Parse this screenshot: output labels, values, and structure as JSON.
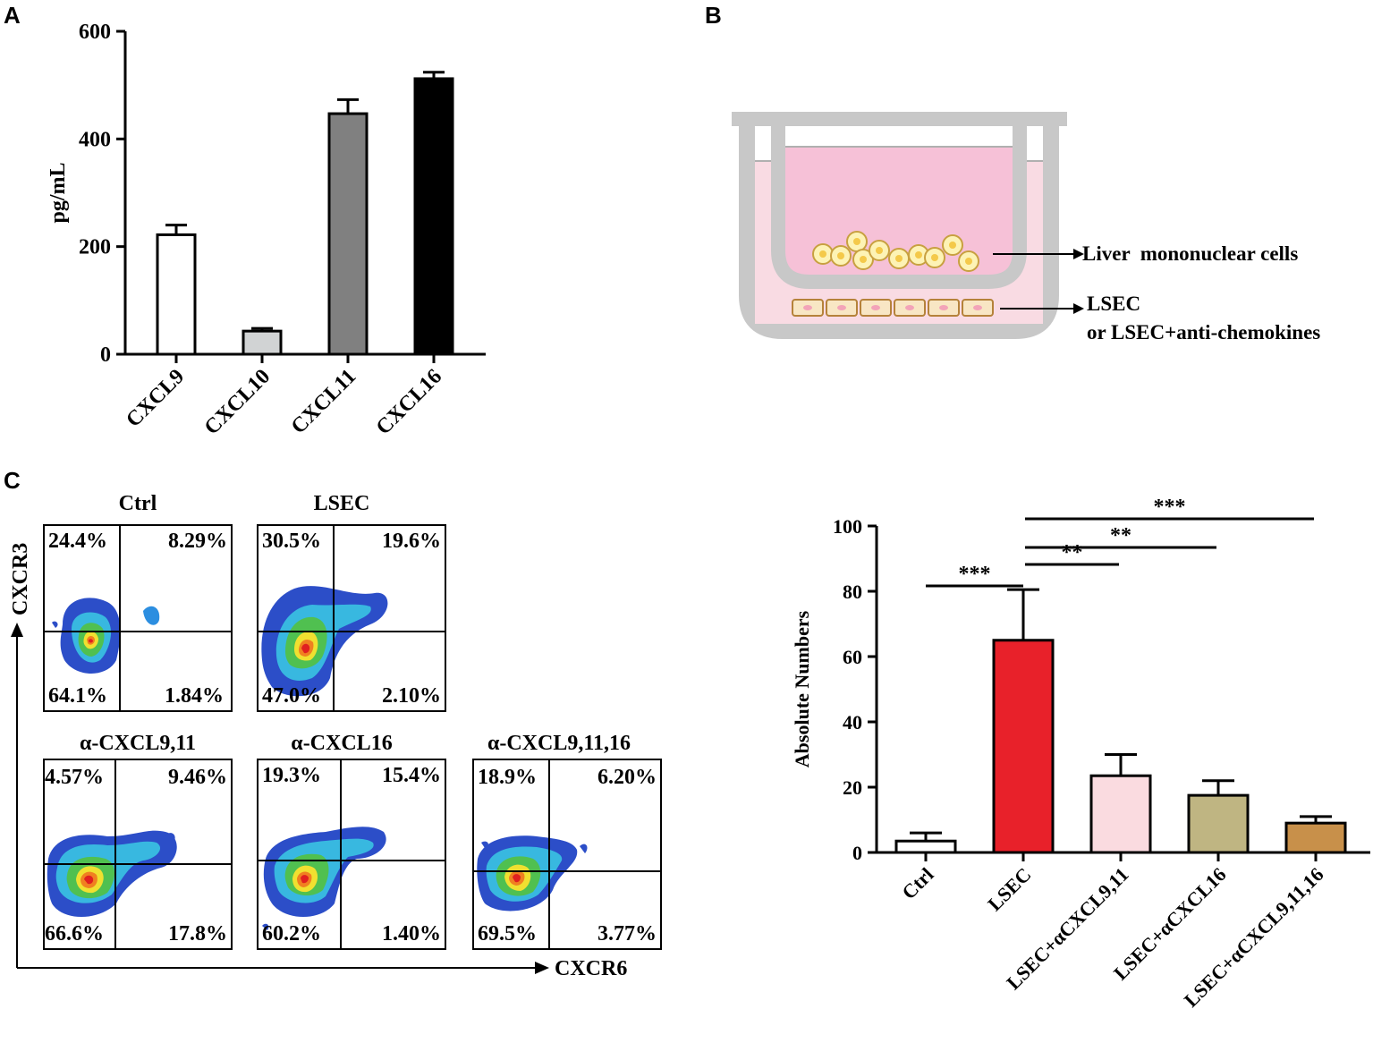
{
  "panels": {
    "a": "A",
    "b": "B",
    "c": "C"
  },
  "panel_a": {
    "chart_data": {
      "type": "bar",
      "categories": [
        "CXCL9",
        "CXCL10",
        "CXCL11",
        "CXCL16"
      ],
      "values": [
        222,
        43,
        447,
        512
      ],
      "errors": [
        18,
        5,
        26,
        12
      ],
      "colors": [
        "#ffffff",
        "#d1d3d4",
        "#808080",
        "#000000"
      ],
      "ylabel": "pg/mL",
      "ylim": [
        0,
        600
      ],
      "yticks": [
        "0",
        "200",
        "400",
        "600"
      ],
      "ytick_values": [
        0,
        200,
        400,
        600
      ]
    }
  },
  "panel_b": {
    "label_cells": "Liver  mononuclear cells",
    "label_lsec_1": "LSEC",
    "label_lsec_2": "or LSEC+anti-chemokines"
  },
  "panel_c_flow": {
    "y_axis": "CXCR3",
    "x_axis": "CXCR6",
    "plots": [
      {
        "title": "Ctrl",
        "tl": "24.4%",
        "tr": "8.29%",
        "bl": "64.1%",
        "br": "1.84%"
      },
      {
        "title": "LSEC",
        "tl": "30.5%",
        "tr": "19.6%",
        "bl": "47.0%",
        "br": "2.10%"
      },
      {
        "title": "α-CXCL9,11",
        "tl": "4.57%",
        "tr": "9.46%",
        "bl": "66.6%",
        "br": "17.8%"
      },
      {
        "title": "α-CXCL16",
        "tl": "19.3%",
        "tr": "15.4%",
        "bl": "60.2%",
        "br": "1.40%"
      },
      {
        "title": "α-CXCL9,11,16",
        "tl": "18.9%",
        "tr": "6.20%",
        "bl": "69.5%",
        "br": "3.77%"
      }
    ]
  },
  "panel_c_bar": {
    "chart_data": {
      "type": "bar",
      "categories": [
        "Ctrl",
        "LSEC",
        "LSEC+αCXCL9,11",
        "LSEC+αCXCL16",
        "LSEC+αCXCL9,11,16"
      ],
      "values": [
        3.5,
        65,
        23.5,
        17.5,
        9
      ],
      "errors": [
        2.5,
        15.5,
        6.5,
        4.5,
        2
      ],
      "colors": [
        "#ffffff",
        "#e8212a",
        "#fadbe0",
        "#bfb582",
        "#c8904a"
      ],
      "ylabel": "Absolute Numbers",
      "ylim": [
        0,
        100
      ],
      "yticks": [
        "0",
        "20",
        "40",
        "60",
        "80",
        "100"
      ],
      "ytick_values": [
        0,
        20,
        40,
        60,
        80,
        100
      ],
      "significance": [
        {
          "from": 0,
          "to": 1,
          "label": "***"
        },
        {
          "from": 1,
          "to": 2,
          "label": "**"
        },
        {
          "from": 1,
          "to": 3,
          "label": "**"
        },
        {
          "from": 1,
          "to": 4,
          "label": "***"
        }
      ]
    }
  }
}
